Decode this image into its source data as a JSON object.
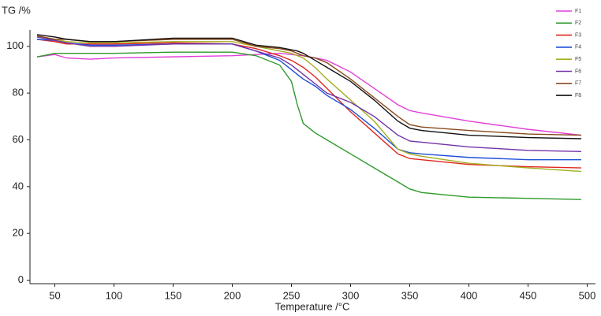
{
  "chart_data": {
    "type": "line",
    "y_label": "TG /%",
    "x_label": "Temperature /°C",
    "x": [
      35,
      50,
      60,
      80,
      100,
      150,
      200,
      220,
      240,
      250,
      255,
      260,
      270,
      280,
      300,
      320,
      340,
      350,
      360,
      400,
      450,
      495
    ],
    "series": [
      {
        "name": "F1",
        "color": "#e23fd8",
        "values": [
          95.5,
          96.5,
          95,
          94.5,
          95,
          95.5,
          96,
          96.5,
          97,
          96.5,
          96.2,
          96,
          95,
          94,
          89,
          82,
          75,
          72.5,
          71.5,
          68,
          64.5,
          62
        ]
      },
      {
        "name": "F2",
        "color": "#2e9a2a",
        "values": [
          95.5,
          97,
          97,
          97,
          97,
          97.5,
          97.5,
          96,
          92,
          85,
          75,
          67,
          63,
          60,
          54,
          48,
          42,
          39,
          37.5,
          35.5,
          35,
          34.5
        ]
      },
      {
        "name": "F3",
        "color": "#e0261e",
        "values": [
          103,
          102,
          101,
          101,
          101,
          101.5,
          101,
          99,
          96,
          94,
          92.5,
          91,
          87,
          82,
          72,
          63,
          54,
          52,
          51.5,
          49.5,
          48.5,
          48
        ]
      },
      {
        "name": "F4",
        "color": "#1f4fd8",
        "values": [
          103,
          102.5,
          101.5,
          100.5,
          100.5,
          101,
          101,
          98,
          94,
          90,
          88,
          86,
          83,
          79,
          73,
          65,
          56,
          54.5,
          54,
          52.5,
          51.5,
          51.5
        ]
      },
      {
        "name": "F5",
        "color": "#a3ad1e",
        "values": [
          104,
          103,
          102,
          101.5,
          101.5,
          102,
          102,
          100,
          98,
          97,
          96,
          95,
          91,
          86,
          77,
          68,
          56,
          54,
          53,
          50,
          48,
          46.5
        ]
      },
      {
        "name": "F6",
        "color": "#7232a8",
        "values": [
          104,
          102.5,
          101.5,
          100,
          100,
          101,
          101,
          98,
          95,
          92,
          90,
          88,
          84,
          80,
          76,
          70,
          62,
          59.5,
          59,
          57,
          55.5,
          55
        ]
      },
      {
        "name": "F7",
        "color": "#8a4a1e",
        "values": [
          104.5,
          103,
          103,
          102,
          102,
          103,
          103,
          100,
          99,
          98,
          97,
          96,
          95,
          93,
          86,
          78,
          70,
          66.5,
          65.5,
          64,
          62.5,
          62
        ]
      },
      {
        "name": "F8",
        "color": "#111111",
        "values": [
          105,
          104,
          103,
          102,
          102,
          103.5,
          103.5,
          100.5,
          99.5,
          98.5,
          98,
          97,
          94,
          91,
          85,
          77,
          68,
          65,
          64,
          62,
          61,
          60.5
        ]
      }
    ],
    "xlim": [
      29,
      507
    ],
    "xticks": [
      50,
      100,
      150,
      200,
      250,
      300,
      350,
      400,
      450,
      500
    ],
    "ylim": [
      -1.5,
      107
    ],
    "yticks": [
      0,
      20,
      40,
      60,
      80,
      100
    ],
    "grid": false,
    "legend": "upper right"
  }
}
